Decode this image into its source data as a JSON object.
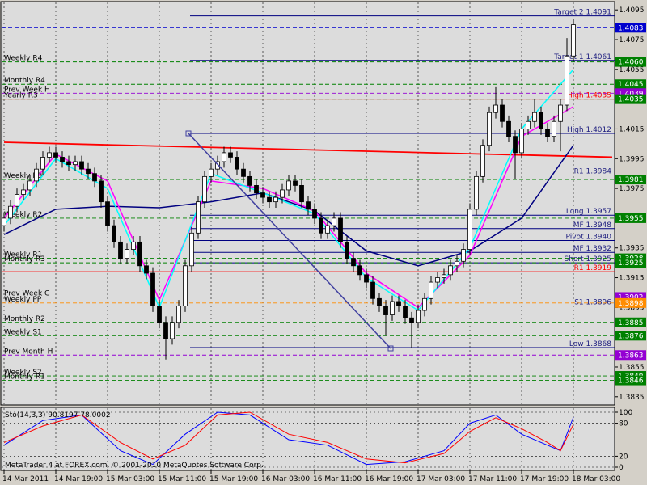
{
  "chart_data": {
    "type": "candlestick",
    "ylim": [
      1.383,
      1.41
    ],
    "yticks": [
      1.4095,
      1.4075,
      1.4055,
      1.4035,
      1.4015,
      1.3995,
      1.3975,
      1.3955,
      1.3935,
      1.3915,
      1.3895,
      1.3875,
      1.3855,
      1.3835
    ],
    "xticks": [
      {
        "value": 0,
        "label": "14 Mar 2011"
      },
      {
        "value": 8,
        "label": "14 Mar 19:00"
      },
      {
        "value": 16,
        "label": "15 Mar 03:00"
      },
      {
        "value": 24,
        "label": "15 Mar 11:00"
      },
      {
        "value": 32,
        "label": "15 Mar 19:00"
      },
      {
        "value": 40,
        "label": "16 Mar 03:00"
      },
      {
        "value": 48,
        "label": "16 Mar 11:00"
      },
      {
        "value": 56,
        "label": "16 Mar 19:00"
      },
      {
        "value": 64,
        "label": "17 Mar 03:00"
      },
      {
        "value": 72,
        "label": "17 Mar 11:00"
      },
      {
        "value": 80,
        "label": "17 Mar 19:00"
      },
      {
        "value": 88,
        "label": "18 Mar 03:00"
      }
    ],
    "bull_color": "#ffffff",
    "bear_color": "#000000",
    "open": [
      1.395,
      1.3955,
      1.3963,
      1.3971,
      1.3974,
      1.398,
      1.3988,
      1.3996,
      1.3999,
      1.3996,
      1.3993,
      1.3991,
      1.3993,
      1.3988,
      1.3985,
      1.398,
      1.3966,
      1.395,
      1.3939,
      1.3928,
      1.3934,
      1.3939,
      1.3923,
      1.3918,
      1.3896,
      1.3885,
      1.3874,
      1.3885,
      1.3896,
      1.3923,
      1.3945,
      1.3966,
      1.3983,
      1.3988,
      1.3993,
      1.3999,
      1.3996,
      1.3988,
      1.3983,
      1.3977,
      1.3972,
      1.3969,
      1.3966,
      1.3969,
      1.3974,
      1.398,
      1.3977,
      1.3966,
      1.3961,
      1.3955,
      1.3945,
      1.395,
      1.3955,
      1.3939,
      1.3928,
      1.3923,
      1.3917,
      1.3912,
      1.3901,
      1.3896,
      1.389,
      1.3899,
      1.3896,
      1.3888,
      1.3885,
      1.3893,
      1.3901,
      1.3912,
      1.3915,
      1.3917,
      1.3923,
      1.3926,
      1.3934,
      1.3961,
      1.3983,
      1.4004,
      1.4026,
      1.4031,
      1.402,
      1.401,
      1.3999,
      1.4015,
      1.402,
      1.4026,
      1.4015,
      1.401,
      1.402,
      1.4031,
      1.4064
    ],
    "high": [
      1.3959,
      1.3967,
      1.3975,
      1.3978,
      1.3984,
      1.3992,
      1.4,
      1.4003,
      1.4003,
      1.4,
      1.3997,
      1.3997,
      1.3997,
      1.3992,
      1.3989,
      1.3984,
      1.397,
      1.3954,
      1.3943,
      1.3938,
      1.3943,
      1.3943,
      1.3927,
      1.3922,
      1.39,
      1.3889,
      1.3889,
      1.39,
      1.3927,
      1.3949,
      1.397,
      1.3987,
      1.3992,
      1.3997,
      1.4003,
      1.4003,
      1.4,
      1.3992,
      1.3987,
      1.3981,
      1.3976,
      1.3973,
      1.3973,
      1.3978,
      1.3984,
      1.3984,
      1.3981,
      1.397,
      1.3965,
      1.3959,
      1.3954,
      1.3959,
      1.3959,
      1.3943,
      1.3932,
      1.3927,
      1.3921,
      1.3916,
      1.3905,
      1.39,
      1.3903,
      1.3903,
      1.39,
      1.3892,
      1.3897,
      1.3905,
      1.3916,
      1.3919,
      1.3921,
      1.3927,
      1.393,
      1.3938,
      1.3965,
      1.3987,
      1.4008,
      1.403,
      1.4043,
      1.4035,
      1.4024,
      1.4014,
      1.4019,
      1.4024,
      1.4035,
      1.403,
      1.4019,
      1.4024,
      1.4035,
      1.4076,
      1.4089
    ],
    "low": [
      1.3946,
      1.3951,
      1.3959,
      1.3967,
      1.397,
      1.3976,
      1.3984,
      1.3992,
      1.3992,
      1.3989,
      1.3987,
      1.3987,
      1.3984,
      1.3981,
      1.3976,
      1.3962,
      1.3946,
      1.3935,
      1.3924,
      1.3924,
      1.393,
      1.3919,
      1.3914,
      1.3892,
      1.3881,
      1.386,
      1.387,
      1.3881,
      1.3892,
      1.3919,
      1.3941,
      1.3962,
      1.3979,
      1.3984,
      1.3989,
      1.3992,
      1.3984,
      1.3979,
      1.3973,
      1.3968,
      1.3965,
      1.3962,
      1.3962,
      1.3965,
      1.397,
      1.3973,
      1.3962,
      1.3957,
      1.3951,
      1.3941,
      1.3941,
      1.3946,
      1.3935,
      1.3924,
      1.3919,
      1.3913,
      1.3908,
      1.3897,
      1.3892,
      1.3876,
      1.3886,
      1.3892,
      1.3884,
      1.3868,
      1.3881,
      1.3889,
      1.3897,
      1.3908,
      1.3911,
      1.3913,
      1.3919,
      1.3922,
      1.393,
      1.3957,
      1.3979,
      1.4,
      1.4022,
      1.4016,
      1.4006,
      1.3981,
      1.3995,
      1.4011,
      1.4016,
      1.4011,
      1.4006,
      1.4006,
      1.4,
      1.4027,
      1.406
    ],
    "close": [
      1.3955,
      1.3963,
      1.3971,
      1.3974,
      1.398,
      1.3988,
      1.3996,
      1.3999,
      1.3996,
      1.3993,
      1.3991,
      1.3993,
      1.3988,
      1.3985,
      1.398,
      1.3966,
      1.395,
      1.3939,
      1.3928,
      1.3934,
      1.3939,
      1.3923,
      1.3918,
      1.3896,
      1.3885,
      1.3874,
      1.3885,
      1.3896,
      1.3923,
      1.3945,
      1.3966,
      1.3983,
      1.3988,
      1.3993,
      1.3999,
      1.3996,
      1.3988,
      1.3983,
      1.3977,
      1.3972,
      1.3969,
      1.3966,
      1.3969,
      1.3974,
      1.398,
      1.3977,
      1.3966,
      1.3961,
      1.3955,
      1.3945,
      1.395,
      1.3955,
      1.3939,
      1.3928,
      1.3923,
      1.3917,
      1.3912,
      1.3901,
      1.3896,
      1.389,
      1.3899,
      1.3896,
      1.3888,
      1.3885,
      1.3893,
      1.3901,
      1.3912,
      1.3915,
      1.3917,
      1.3923,
      1.3926,
      1.3934,
      1.3961,
      1.3983,
      1.4004,
      1.4026,
      1.4031,
      1.402,
      1.401,
      1.3999,
      1.4015,
      1.402,
      1.4026,
      1.4015,
      1.401,
      1.402,
      1.4031,
      1.4064,
      1.4085
    ],
    "overlays": [
      {
        "color": "#ff0000",
        "x": [
          0,
          94
        ],
        "values": [
          1.4006,
          1.3996
        ]
      },
      {
        "color": "#000080",
        "x": [
          0,
          8,
          16,
          24,
          32,
          40,
          48,
          56,
          64,
          72,
          80,
          88
        ],
        "values": [
          1.3944,
          1.3961,
          1.3963,
          1.3962,
          1.3966,
          1.3972,
          1.396,
          1.3933,
          1.3923,
          1.3933,
          1.3955,
          1.4004
        ]
      },
      {
        "color": "#ff00ff",
        "x": [
          0,
          8,
          16,
          24,
          32,
          40,
          48,
          56,
          64,
          72,
          80,
          88
        ],
        "values": [
          1.3955,
          1.3998,
          1.398,
          1.39,
          1.398,
          1.3975,
          1.396,
          1.3918,
          1.3895,
          1.393,
          1.401,
          1.403
        ]
      },
      {
        "color": "#00ffff",
        "x": [
          0,
          8,
          16,
          24,
          32,
          40,
          48,
          56,
          64,
          72,
          80,
          88
        ],
        "values": [
          1.395,
          1.3995,
          1.3975,
          1.3895,
          1.3985,
          1.3972,
          1.3958,
          1.3915,
          1.3893,
          1.3935,
          1.4015,
          1.4055
        ]
      }
    ],
    "levels": [
      {
        "label": "Target 2  1.4091",
        "value": 1.4091,
        "color": "#000080",
        "side": "right"
      },
      {
        "label": "Target 1  1.4061",
        "value": 1.4061,
        "color": "#000080",
        "side": "right"
      },
      {
        "label": "High  1.4035",
        "value": 1.4035,
        "color": "#ff0000",
        "side": "right"
      },
      {
        "label": "High  1.4012",
        "value": 1.4012,
        "color": "#000080",
        "side": "right"
      },
      {
        "label": "R1  1.3984",
        "value": 1.3984,
        "color": "#000080",
        "side": "right"
      },
      {
        "label": "Long  1.3957",
        "value": 1.3957,
        "color": "#000080",
        "side": "right"
      },
      {
        "label": "MF  1.3948",
        "value": 1.3948,
        "color": "#000080",
        "side": "right"
      },
      {
        "label": "Pivot  1.3940",
        "value": 1.394,
        "color": "#000080",
        "side": "right"
      },
      {
        "label": "MF  1.3932",
        "value": 1.3932,
        "color": "#000080",
        "side": "right"
      },
      {
        "label": "Short  1.3925",
        "value": 1.3925,
        "color": "#000080",
        "side": "right"
      },
      {
        "label": "R1  1.3919",
        "value": 1.3919,
        "color": "#ff0000",
        "side": "right"
      },
      {
        "label": "S1  1.3896",
        "value": 1.3896,
        "color": "#000080",
        "side": "right"
      },
      {
        "label": "Low  1.3868",
        "value": 1.3868,
        "color": "#000080",
        "side": "right"
      },
      {
        "value": 1.4083,
        "tag": "1.4083",
        "color": "#0000cd",
        "side": "left"
      },
      {
        "label": "Weekly R4",
        "value": 1.406,
        "tag": "1.4060",
        "color": "#008000",
        "side": "left"
      },
      {
        "label": "Monthly R4",
        "value": 1.4045,
        "tag": "1.4045",
        "color": "#008000",
        "side": "left"
      },
      {
        "label": "Prev Week H",
        "value": 1.4039,
        "tag": "1.4039",
        "color": "#9400d3",
        "side": "left"
      },
      {
        "label": "Yearly R3",
        "value": 1.4035,
        "tag": "1.4035",
        "color": "#008000",
        "side": "left"
      },
      {
        "label": "Weekly R3",
        "value": 1.3981,
        "tag": "1.3981",
        "color": "#008000",
        "side": "left"
      },
      {
        "label": "Weekly R2",
        "value": 1.3955,
        "tag": "1.3955",
        "color": "#008000",
        "side": "left"
      },
      {
        "label": "Weekly R1",
        "value": 1.3928,
        "tag": "1.3928",
        "color": "#008000",
        "side": "left"
      },
      {
        "label": "Monthly R3",
        "value": 1.3925,
        "tag": "1.3925",
        "color": "#008000",
        "side": "left"
      },
      {
        "label": "Prev Week C",
        "value": 1.3902,
        "tag": "1.3902",
        "color": "#9400d3",
        "side": "left"
      },
      {
        "label": "Weekly PP",
        "value": 1.3898,
        "tag": "1.3898",
        "color": "#ff8c00",
        "side": "left"
      },
      {
        "label": "Monthly R2",
        "value": 1.3885,
        "tag": "1.3885",
        "color": "#008000",
        "side": "left"
      },
      {
        "label": "Weekly S1",
        "value": 1.3876,
        "tag": "1.3876",
        "color": "#008000",
        "side": "left"
      },
      {
        "label": "Prev Month H",
        "value": 1.3863,
        "tag": "1.3863",
        "color": "#9400d3",
        "side": "left"
      },
      {
        "label": "Weekly S2",
        "value": 1.3849,
        "tag": "1.3849",
        "color": "#008000",
        "side": "left"
      },
      {
        "label": "Monthly R1",
        "value": 1.3846,
        "tag": "1.3846",
        "color": "#008000",
        "side": "left"
      }
    ],
    "indicator": {
      "title": "Sto(14,3,3) 90.8197 78.0002",
      "ylim": [
        0,
        100
      ],
      "yticks": [
        100,
        80,
        20,
        0
      ],
      "series": [
        {
          "color": "#0000ff",
          "x": [
            0,
            6,
            12,
            18,
            23,
            28,
            33,
            38,
            44,
            50,
            56,
            62,
            68,
            72,
            76,
            80,
            84,
            86,
            88
          ],
          "values": [
            40,
            85,
            95,
            30,
            5,
            60,
            100,
            95,
            50,
            40,
            5,
            10,
            30,
            80,
            95,
            60,
            40,
            30,
            91
          ]
        },
        {
          "color": "#ff0000",
          "x": [
            0,
            6,
            12,
            18,
            23,
            28,
            33,
            38,
            44,
            50,
            56,
            62,
            68,
            72,
            76,
            80,
            84,
            86,
            88
          ],
          "values": [
            45,
            75,
            95,
            45,
            15,
            40,
            95,
            100,
            60,
            45,
            15,
            8,
            25,
            65,
            90,
            70,
            45,
            30,
            78
          ]
        }
      ]
    },
    "footer": "MetaTrader 4 at FOREX.com, © 2001-2010 MetaQuotes Software Corp."
  }
}
